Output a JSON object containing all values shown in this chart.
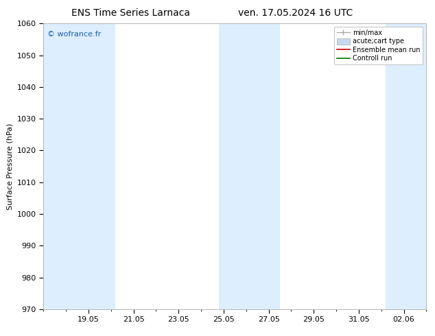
{
  "title_left": "ENS Time Series Larnaca",
  "title_right": "ven. 17.05.2024 16 UTC",
  "ylabel": "Surface Pressure (hPa)",
  "ylim": [
    970,
    1060
  ],
  "yticks": [
    970,
    980,
    990,
    1000,
    1010,
    1020,
    1030,
    1040,
    1050,
    1060
  ],
  "xtick_labels": [
    "19.05",
    "21.05",
    "23.05",
    "25.05",
    "27.05",
    "29.05",
    "31.05",
    "02.06"
  ],
  "xtick_positions_days": [
    2,
    4,
    6,
    8,
    10,
    12,
    14,
    16
  ],
  "xlim": [
    0,
    17
  ],
  "shaded_bands": [
    {
      "start_day": 0.0,
      "end_day": 3.2
    },
    {
      "start_day": 7.8,
      "end_day": 10.5
    },
    {
      "start_day": 15.2,
      "end_day": 17.0
    }
  ],
  "band_color": "#ddeeff",
  "watermark": "© wofrance.fr",
  "watermark_color": "#1a5faa",
  "legend_entries": [
    "min/max",
    "acute;cart type",
    "Ensemble mean run",
    "Controll run"
  ],
  "legend_line_colors": [
    "#aaaaaa",
    "#c8daf0",
    "#cc0000",
    "#007700"
  ],
  "background_color": "#ffffff",
  "title_fontsize": 10,
  "label_fontsize": 8,
  "tick_fontsize": 8,
  "legend_fontsize": 7
}
